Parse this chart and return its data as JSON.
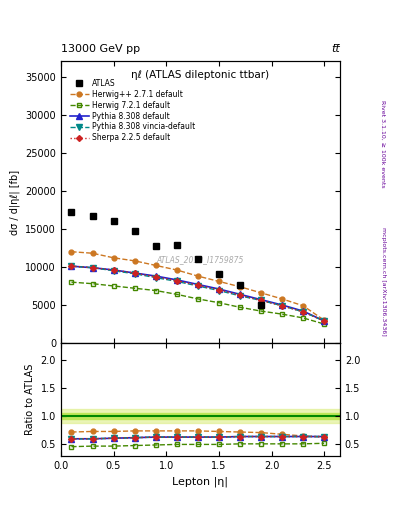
{
  "title_top": "13000 GeV pp",
  "title_top_right": "tt̅",
  "plot_title": "ηℓ (ATLAS dileptonic ttbar)",
  "xlabel": "Lepton |η|",
  "ylabel_main": "dσ / d|ηℓ| [fb]",
  "ylabel_ratio": "Ratio to ATLAS",
  "watermark": "ATLAS_2019_I1759875",
  "right_label_top": "Rivet 3.1.10, ≥ 100k events",
  "right_label_bot": "mcplots.cern.ch [arXiv:1306.3436]",
  "atlas_x": [
    0.1,
    0.3,
    0.5,
    0.7,
    0.9,
    1.1,
    1.3,
    1.5,
    1.7,
    1.9,
    2.1,
    2.3,
    2.5
  ],
  "atlas_y": [
    17200,
    16700,
    16000,
    14700,
    12700,
    12900,
    11000,
    9100,
    7600,
    5000,
    0,
    0,
    0
  ],
  "herwig_x": [
    0.1,
    0.3,
    0.5,
    0.7,
    0.9,
    1.1,
    1.3,
    1.5,
    1.7,
    1.9,
    2.1,
    2.3,
    2.5
  ],
  "herwig_y": [
    12000,
    11800,
    11200,
    10800,
    10200,
    9600,
    8800,
    8100,
    7400,
    6600,
    5800,
    4900,
    3000
  ],
  "herwig72_x": [
    0.1,
    0.3,
    0.5,
    0.7,
    0.9,
    1.1,
    1.3,
    1.5,
    1.7,
    1.9,
    2.1,
    2.3,
    2.5
  ],
  "herwig72_y": [
    8000,
    7800,
    7500,
    7200,
    6900,
    6400,
    5800,
    5300,
    4700,
    4200,
    3800,
    3300,
    2500
  ],
  "pythia_x": [
    0.1,
    0.3,
    0.5,
    0.7,
    0.9,
    1.1,
    1.3,
    1.5,
    1.7,
    1.9,
    2.1,
    2.3,
    2.5
  ],
  "pythia_y": [
    10100,
    9900,
    9600,
    9200,
    8800,
    8300,
    7700,
    7100,
    6400,
    5700,
    5000,
    4200,
    2900
  ],
  "vincia_x": [
    0.1,
    0.3,
    0.5,
    0.7,
    0.9,
    1.1,
    1.3,
    1.5,
    1.7,
    1.9,
    2.1,
    2.3,
    2.5
  ],
  "vincia_y": [
    10100,
    9900,
    9500,
    9100,
    8600,
    8100,
    7500,
    6900,
    6200,
    5600,
    4900,
    4100,
    2900
  ],
  "sherpa_x": [
    0.1,
    0.3,
    0.5,
    0.7,
    0.9,
    1.1,
    1.3,
    1.5,
    1.7,
    1.9,
    2.1,
    2.3,
    2.5
  ],
  "sherpa_y": [
    10100,
    9900,
    9600,
    9200,
    8700,
    8200,
    7600,
    7000,
    6300,
    5600,
    4900,
    4100,
    2900
  ],
  "ratio_herwig": [
    0.72,
    0.73,
    0.73,
    0.74,
    0.74,
    0.74,
    0.74,
    0.73,
    0.72,
    0.71,
    0.68,
    0.65,
    0.63
  ],
  "ratio_herwig72": [
    0.46,
    0.47,
    0.47,
    0.48,
    0.49,
    0.5,
    0.5,
    0.5,
    0.51,
    0.51,
    0.51,
    0.51,
    0.52
  ],
  "ratio_pythia": [
    0.6,
    0.6,
    0.61,
    0.62,
    0.63,
    0.63,
    0.63,
    0.63,
    0.64,
    0.64,
    0.64,
    0.64,
    0.64
  ],
  "ratio_vincia": [
    0.6,
    0.6,
    0.61,
    0.62,
    0.63,
    0.63,
    0.63,
    0.63,
    0.64,
    0.64,
    0.64,
    0.64,
    0.64
  ],
  "ratio_sherpa": [
    0.6,
    0.6,
    0.61,
    0.62,
    0.63,
    0.63,
    0.63,
    0.63,
    0.64,
    0.64,
    0.64,
    0.64,
    0.64
  ],
  "color_atlas": "#000000",
  "color_herwig": "#cc7722",
  "color_herwig72": "#448800",
  "color_pythia": "#2222cc",
  "color_vincia": "#008888",
  "color_sherpa": "#cc2222",
  "color_ratio_band_green": "#88dd00",
  "color_ratio_band_yellow": "#ddee88",
  "color_ratio_line": "#008800",
  "ylim_main": [
    0,
    37000
  ],
  "ylim_ratio": [
    0.3,
    2.3
  ],
  "xlim": [
    0.0,
    2.65
  ],
  "ratio_yticks": [
    0.5,
    1.0,
    1.5,
    2.0
  ],
  "main_yticks": [
    0,
    5000,
    10000,
    15000,
    20000,
    25000,
    30000,
    35000
  ]
}
